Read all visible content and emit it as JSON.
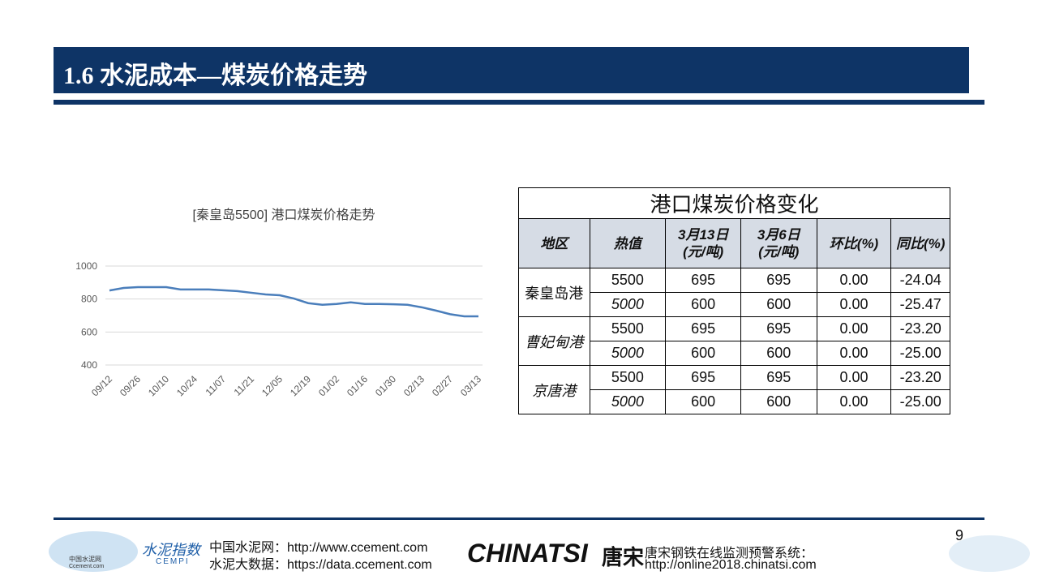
{
  "header": {
    "title": "1.6 水泥成本—煤炭价格走势"
  },
  "chart_data": {
    "type": "line",
    "title": "[秦皇岛5500] 港口煤炭价格走势",
    "categories": [
      "09/12",
      null,
      "09/26",
      null,
      "10/10",
      null,
      "10/24",
      null,
      "11/07",
      null,
      "11/21",
      null,
      "12/05",
      null,
      "12/19",
      null,
      "01/02",
      null,
      "01/16",
      null,
      "01/30",
      null,
      "02/13",
      null,
      "02/27",
      null,
      "03/13"
    ],
    "series": [
      {
        "name": "秦皇岛5500",
        "color": "#4a7ebb",
        "values": [
          852,
          867,
          872,
          872,
          872,
          858,
          858,
          858,
          853,
          848,
          838,
          828,
          823,
          803,
          775,
          765,
          770,
          780,
          770,
          770,
          768,
          765,
          750,
          730,
          708,
          695,
          695
        ]
      }
    ],
    "ylim": [
      400,
      1000
    ],
    "yticks": [
      400,
      600,
      800,
      1000
    ],
    "grid": true
  },
  "table": {
    "title": "港口煤炭价格变化",
    "header": [
      "地区",
      "热值",
      "3月13日\n(元/吨)",
      "3月6日\n(元/吨)",
      "环比(%)",
      "同比(%)"
    ],
    "groups": [
      {
        "region": "秦皇岛港",
        "rows": [
          [
            "5500",
            "695",
            "695",
            "0.00",
            "-24.04"
          ],
          [
            "5000",
            "600",
            "600",
            "0.00",
            "-25.47"
          ]
        ]
      },
      {
        "region": "曹妃甸港",
        "rows": [
          [
            "5500",
            "695",
            "695",
            "0.00",
            "-23.20"
          ],
          [
            "5000",
            "600",
            "600",
            "0.00",
            "-25.00"
          ]
        ]
      },
      {
        "region": "京唐港",
        "rows": [
          [
            "5500",
            "695",
            "695",
            "0.00",
            "-23.20"
          ],
          [
            "5000",
            "600",
            "600",
            "0.00",
            "-25.00"
          ]
        ]
      }
    ]
  },
  "footer": {
    "logo1": "中国水泥网",
    "logo1_sub": "Ccement.com",
    "logo2": "水泥指数",
    "logo2_sub": "CEMPI",
    "line1": "中国水泥网：http://www.ccement.com",
    "line2": "水泥大数据：https://data.ccement.com",
    "brand": "CHINATSI",
    "brand_cn": "唐宋",
    "sys": "唐宋钢铁在线监测预警系统：",
    "sys_url": "http://online2018.chinatsi.com",
    "page": "9"
  }
}
